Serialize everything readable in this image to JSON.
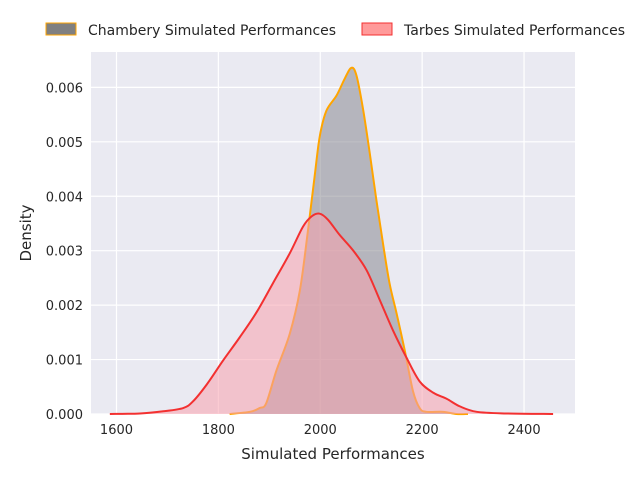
{
  "chart_data": {
    "type": "area",
    "title": "",
    "xlabel": "Simulated Performances",
    "ylabel": "Density",
    "xlim": [
      1550,
      2500
    ],
    "ylim": [
      0,
      0.00665
    ],
    "xticks": [
      1600,
      1800,
      2000,
      2200,
      2400
    ],
    "xtick_labels": [
      "1600",
      "1800",
      "2000",
      "2200",
      "2400"
    ],
    "yticks": [
      0,
      0.001,
      0.002,
      0.003,
      0.004,
      0.005,
      0.006
    ],
    "ytick_labels": [
      "0.000",
      "0.001",
      "0.002",
      "0.003",
      "0.004",
      "0.005",
      "0.006"
    ],
    "grid": true,
    "legend_position": "top, outside, horizontal",
    "series": [
      {
        "name": "Chambery Simulated Performances",
        "fill": "#808080",
        "line": "#ffa500",
        "x": [
          1822,
          1862,
          1881,
          1894,
          1914,
          1940,
          1960,
          1976,
          1989,
          1999,
          2012,
          2032,
          2048,
          2061,
          2071,
          2084,
          2097,
          2110,
          2123,
          2136,
          2150,
          2166,
          2182,
          2195,
          2208,
          2241,
          2267,
          2290
        ],
        "y": [
          0,
          4e-05,
          0.00011,
          0.0002,
          0.0008,
          0.00147,
          0.00227,
          0.00338,
          0.00437,
          0.0051,
          0.00557,
          0.00585,
          0.00616,
          0.00636,
          0.00622,
          0.0056,
          0.0048,
          0.00394,
          0.00314,
          0.0024,
          0.00184,
          0.00116,
          0.00042,
          0.00011,
          4e-05,
          4e-05,
          0,
          0
        ]
      },
      {
        "name": "Tarbes Simulated Performances",
        "fill": "#ff9a9a",
        "line": "#f33030",
        "x": [
          1587,
          1646,
          1692,
          1731,
          1750,
          1777,
          1809,
          1842,
          1875,
          1907,
          1940,
          1966,
          1983,
          1999,
          2015,
          2038,
          2064,
          2091,
          2117,
          2143,
          2169,
          2195,
          2222,
          2248,
          2274,
          2307,
          2365,
          2457
        ],
        "y": [
          0,
          1e-05,
          5e-05,
          0.00011,
          0.00023,
          0.00054,
          0.00098,
          0.00141,
          0.00187,
          0.0024,
          0.00295,
          0.00344,
          0.00363,
          0.00368,
          0.00357,
          0.00329,
          0.00301,
          0.00264,
          0.00209,
          0.00153,
          0.00104,
          0.0006,
          0.00039,
          0.00028,
          0.00014,
          4e-05,
          1e-05,
          0
        ]
      }
    ]
  }
}
